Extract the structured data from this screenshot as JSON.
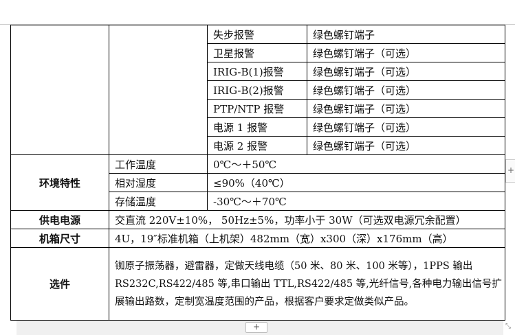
{
  "alarms": [
    {
      "name": "失步报警",
      "value": "绿色螺钉端子"
    },
    {
      "name": "卫星报警",
      "value": "绿色螺钉端子（可选）"
    },
    {
      "name": "IRIG-B(1)报警",
      "value": "绿色螺钉端子（可选）"
    },
    {
      "name": "IRIG-B(2)报警",
      "value": "绿色螺钉端子（可选）"
    },
    {
      "name": "PTP/NTP 报警",
      "value": "绿色螺钉端子（可选）"
    },
    {
      "name": "电源 1 报警",
      "value": "绿色螺钉端子（可选）"
    },
    {
      "name": "电源 2 报警",
      "value": "绿色螺钉端子（可选）"
    }
  ],
  "environment": {
    "label": "环境特性",
    "rows": [
      {
        "name": "工作温度",
        "value": "0℃～＋50℃"
      },
      {
        "name": "相对湿度",
        "value": "≤90%（40℃）"
      },
      {
        "name": "存储温度",
        "value": "-30℃～＋70℃"
      }
    ]
  },
  "power": {
    "label": "供电电源",
    "value": "交直流 220V±10%， 50Hz±5%，功率小于 30W（可选双电源冗余配置）"
  },
  "chassis": {
    "label": "机箱尺寸",
    "value": "4U，19″标准机箱（上机架）482mm（宽）x300（深）x176mm（高）"
  },
  "options": {
    "label": "选件",
    "value": "铷原子振荡器，避雷器，定做天线电缆（50 米、80 米、100 米等），1PPS 输出 RS232C,RS422/485 等,串口输出 TTL,RS422/485 等,光纤信号,各种电力输出信号扩展输出路数，定制宽温度范围的产品，根据客户要求定做类似产品。"
  },
  "controls": {
    "add_row": "+",
    "add_column": "+",
    "resize": "⤡"
  }
}
